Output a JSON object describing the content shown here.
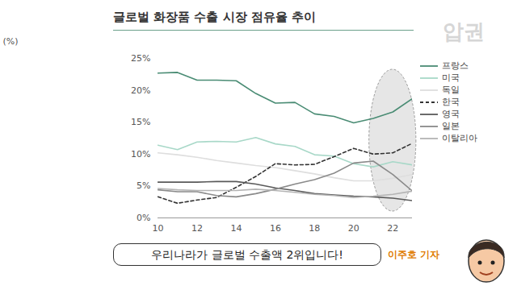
{
  "chart_data": {
    "type": "line",
    "title": "글로벌 화장품 수출 시장 점유율 추이",
    "y_label": "(%)",
    "x": [
      2010,
      2011,
      2012,
      2013,
      2014,
      2015,
      2016,
      2017,
      2018,
      2019,
      2020,
      2021,
      2022,
      2023
    ],
    "xlim": [
      2010,
      2023
    ],
    "xticks": [
      {
        "value": 2010,
        "label": "10"
      },
      {
        "value": 2012,
        "label": "12"
      },
      {
        "value": 2014,
        "label": "14"
      },
      {
        "value": 2016,
        "label": "16"
      },
      {
        "value": 2018,
        "label": "18"
      },
      {
        "value": 2020,
        "label": "20"
      },
      {
        "value": 2022,
        "label": "22"
      }
    ],
    "ylim": [
      0,
      25
    ],
    "yticks": [
      {
        "value": 0,
        "label": "0%"
      },
      {
        "value": 5,
        "label": "5%"
      },
      {
        "value": 10,
        "label": "10%"
      },
      {
        "value": 15,
        "label": "15%"
      },
      {
        "value": 20,
        "label": "20%"
      },
      {
        "value": 25,
        "label": "25%"
      }
    ],
    "grid": false,
    "legend": "right",
    "series": [
      {
        "name": "프랑스",
        "color": "#4a8c74",
        "line_style": "solid",
        "values": [
          22.7,
          22.8,
          21.6,
          21.6,
          21.5,
          19.5,
          18.0,
          18.1,
          16.3,
          15.9,
          14.9,
          15.6,
          16.6,
          18.7
        ]
      },
      {
        "name": "미국",
        "color": "#a8d8c8",
        "line_style": "solid",
        "values": [
          11.4,
          10.7,
          11.9,
          12.0,
          11.9,
          12.6,
          11.6,
          11.2,
          9.9,
          9.7,
          8.5,
          8.0,
          8.8,
          8.3
        ]
      },
      {
        "name": "독일",
        "color": "#dedede",
        "line_style": "solid",
        "values": [
          10.2,
          9.9,
          9.5,
          9.0,
          8.6,
          8.2,
          7.9,
          7.4,
          6.9,
          6.3,
          5.8,
          5.8,
          6.2,
          6.8
        ]
      },
      {
        "name": "한국",
        "color": "#333333",
        "line_style": "dashed",
        "values": [
          3.3,
          2.3,
          2.8,
          3.2,
          4.8,
          6.5,
          8.5,
          8.3,
          8.4,
          9.6,
          10.9,
          10.0,
          10.2,
          11.7
        ]
      },
      {
        "name": "영국",
        "color": "#5a5a5a",
        "line_style": "solid",
        "values": [
          5.6,
          5.6,
          5.6,
          5.7,
          5.7,
          5.3,
          4.7,
          4.3,
          3.8,
          3.6,
          3.4,
          3.3,
          3.1,
          2.7
        ]
      },
      {
        "name": "일본",
        "color": "#8a8a8a",
        "line_style": "solid",
        "values": [
          4.4,
          4.1,
          4.1,
          3.5,
          3.3,
          3.8,
          4.5,
          5.3,
          6.0,
          7.0,
          8.6,
          8.9,
          6.8,
          4.2
        ]
      },
      {
        "name": "이탈리아",
        "color": "#b4b4b4",
        "line_style": "solid",
        "values": [
          4.6,
          4.4,
          4.3,
          4.3,
          4.3,
          4.5,
          4.3,
          4.0,
          3.7,
          3.5,
          3.2,
          3.4,
          3.7,
          4.2
        ]
      }
    ],
    "watermark": "압권",
    "caption": "우리나라가 글로벌 수출액 2위입니다!",
    "credit": "이주호 기자"
  }
}
